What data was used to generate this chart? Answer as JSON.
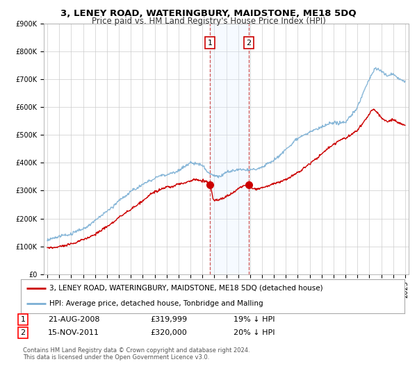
{
  "title": "3, LENEY ROAD, WATERINGBURY, MAIDSTONE, ME18 5DQ",
  "subtitle": "Price paid vs. HM Land Registry's House Price Index (HPI)",
  "ylim": [
    0,
    900000
  ],
  "yticks": [
    0,
    100000,
    200000,
    300000,
    400000,
    500000,
    600000,
    700000,
    800000,
    900000
  ],
  "ytick_labels": [
    "£0",
    "£100K",
    "£200K",
    "£300K",
    "£400K",
    "£500K",
    "£600K",
    "£700K",
    "£800K",
    "£900K"
  ],
  "bg_color": "#ffffff",
  "grid_color": "#cccccc",
  "red_color": "#cc0000",
  "blue_color": "#7bafd4",
  "shade_color": "#ddeeff",
  "sale1_year": 2008.64,
  "sale1_price": 319999,
  "sale2_year": 2011.88,
  "sale2_price": 320000,
  "legend_label_red": "3, LENEY ROAD, WATERINGBURY, MAIDSTONE, ME18 5DQ (detached house)",
  "legend_label_blue": "HPI: Average price, detached house, Tonbridge and Malling",
  "table_row1": [
    "1",
    "21-AUG-2008",
    "£319,999",
    "19% ↓ HPI"
  ],
  "table_row2": [
    "2",
    "15-NOV-2011",
    "£320,000",
    "20% ↓ HPI"
  ],
  "footer": "Contains HM Land Registry data © Crown copyright and database right 2024.\nThis data is licensed under the Open Government Licence v3.0.",
  "title_fontsize": 9.5,
  "subtitle_fontsize": 8.5,
  "tick_fontsize": 7,
  "legend_fontsize": 7.5,
  "footer_fontsize": 6
}
